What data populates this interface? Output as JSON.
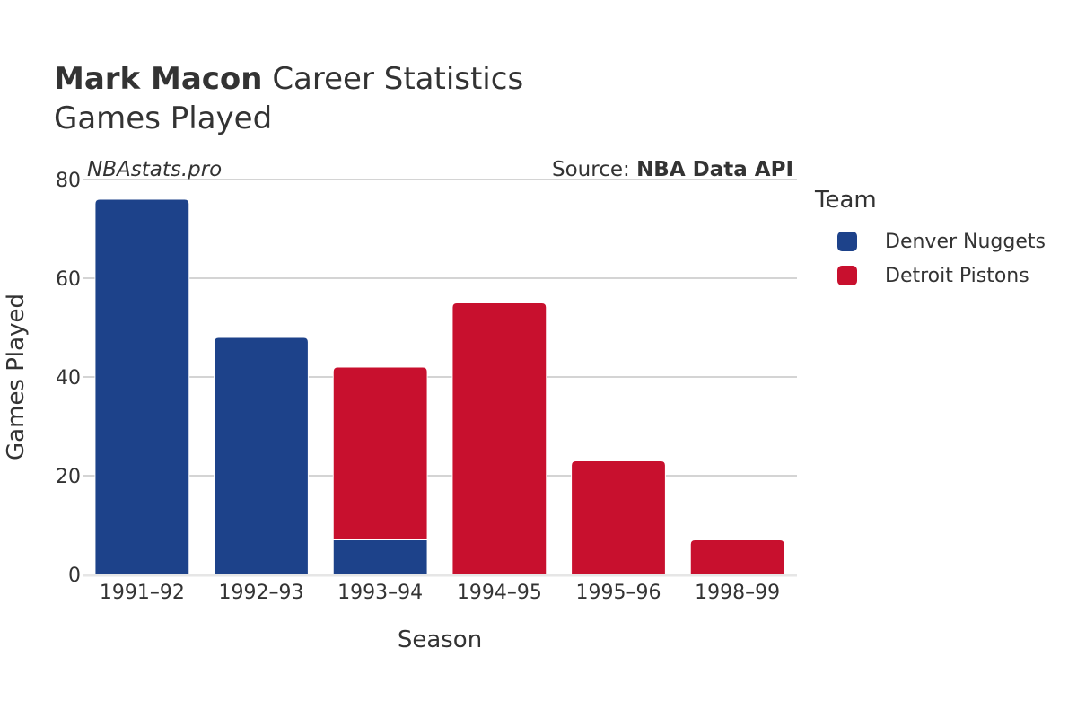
{
  "header": {
    "title_bold": "Mark Macon",
    "title_rest": "Career Statistics",
    "subtitle": "Games Played",
    "watermark": "NBAstats.pro",
    "source_prefix": "Source:",
    "source_name": "NBA Data API"
  },
  "colors": {
    "Denver Nuggets": "#1d428a",
    "Detroit Pistons": "#c8102e",
    "grid": "#bbbbbb",
    "axis_line": "#e6e6e6"
  },
  "chart_data": {
    "type": "bar",
    "stacked": true,
    "title": "Mark Macon Career Statistics",
    "subtitle": "Games Played",
    "xlabel": "Season",
    "ylabel": "Games Played",
    "ylim": [
      0,
      80
    ],
    "yticks": [
      0,
      20,
      40,
      60,
      80
    ],
    "grid": true,
    "legend_title": "Team",
    "legend_position": "right",
    "categories": [
      "1991–92",
      "1992–93",
      "1993–94",
      "1994–95",
      "1995–96",
      "1998–99"
    ],
    "series": [
      {
        "name": "Denver Nuggets",
        "values": [
          76,
          48,
          7,
          0,
          0,
          0
        ]
      },
      {
        "name": "Detroit Pistons",
        "values": [
          0,
          0,
          35,
          55,
          23,
          7
        ]
      }
    ]
  }
}
